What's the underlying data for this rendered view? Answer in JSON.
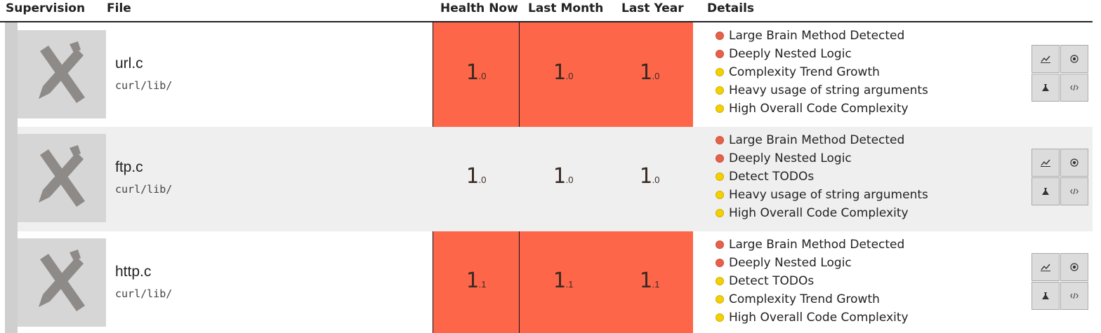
{
  "header": {
    "supervision": "Supervision",
    "file": "File",
    "health_now": "Health Now",
    "last_month": "Last Month",
    "last_year": "Last Year",
    "details": "Details"
  },
  "colors": {
    "score_bg": "#fe664a",
    "dot_red": "#e8604a",
    "dot_yellow": "#f5d000",
    "row_alt": "#efefef"
  },
  "rows": [
    {
      "file_name": "url.c",
      "path": "curl/lib/",
      "health_now": {
        "int": "1",
        "dec": ".0"
      },
      "last_month": {
        "int": "1",
        "dec": ".0"
      },
      "last_year": {
        "int": "1",
        "dec": ".0"
      },
      "details": [
        {
          "severity": "red",
          "text": "Large Brain Method Detected"
        },
        {
          "severity": "red",
          "text": "Deeply Nested Logic"
        },
        {
          "severity": "yellow",
          "text": "Complexity Trend Growth"
        },
        {
          "severity": "yellow",
          "text": "Heavy usage of string arguments"
        },
        {
          "severity": "yellow",
          "text": "High Overall Code Complexity"
        }
      ]
    },
    {
      "file_name": "ftp.c",
      "path": "curl/lib/",
      "health_now": {
        "int": "1",
        "dec": ".0"
      },
      "last_month": {
        "int": "1",
        "dec": ".0"
      },
      "last_year": {
        "int": "1",
        "dec": ".0"
      },
      "details": [
        {
          "severity": "red",
          "text": "Large Brain Method Detected"
        },
        {
          "severity": "red",
          "text": "Deeply Nested Logic"
        },
        {
          "severity": "yellow",
          "text": "Detect TODOs"
        },
        {
          "severity": "yellow",
          "text": "Heavy usage of string arguments"
        },
        {
          "severity": "yellow",
          "text": "High Overall Code Complexity"
        }
      ]
    },
    {
      "file_name": "http.c",
      "path": "curl/lib/",
      "health_now": {
        "int": "1",
        "dec": ".1"
      },
      "last_month": {
        "int": "1",
        "dec": ".1"
      },
      "last_year": {
        "int": "1",
        "dec": ".1"
      },
      "details": [
        {
          "severity": "red",
          "text": "Large Brain Method Detected"
        },
        {
          "severity": "red",
          "text": "Deeply Nested Logic"
        },
        {
          "severity": "yellow",
          "text": "Detect TODOs"
        },
        {
          "severity": "yellow",
          "text": "Complexity Trend Growth"
        },
        {
          "severity": "yellow",
          "text": "High Overall Code Complexity"
        }
      ]
    }
  ],
  "icons": {
    "file_thumbnail": "pencil-ruler-icon",
    "trend": "trend-chart-icon",
    "target": "target-icon",
    "lab": "flask-icon",
    "code": "code-icon"
  }
}
